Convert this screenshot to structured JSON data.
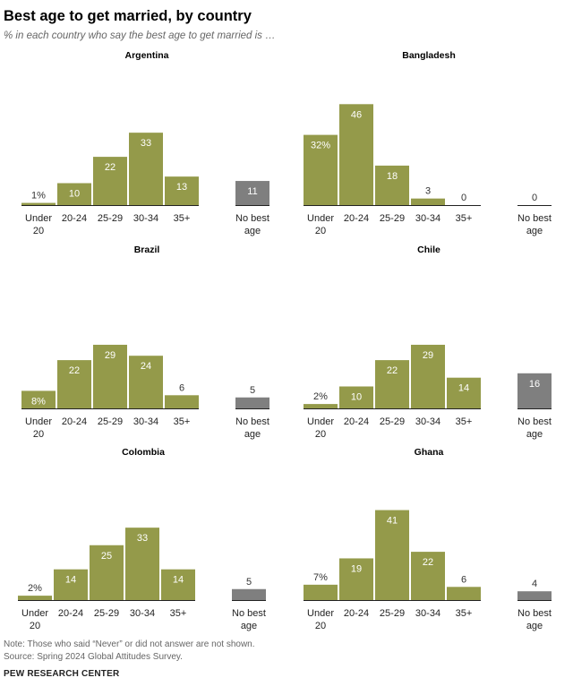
{
  "title": "Best age to get married, by country",
  "subtitle": "% in each country who say the best age to get married is …",
  "note": "Note: Those who said “Never” or did not answer are not shown.",
  "source": "Source: Spring 2024 Global Attitudes Survey.",
  "brand": "PEW RESEARCH CENTER",
  "colors": {
    "bar": "#949a4a",
    "no_best": "#7f7f7f",
    "axis": "#222222"
  },
  "chart_data": [
    {
      "type": "bar",
      "title": "Argentina",
      "categories": [
        "Under 20",
        "20-24",
        "25-29",
        "30-34",
        "35+",
        "No best age"
      ],
      "values": [
        1,
        10,
        22,
        33,
        13,
        11
      ],
      "labels": [
        "1%",
        "10",
        "22",
        "33",
        "13",
        "11"
      ]
    },
    {
      "type": "bar",
      "title": "Bangladesh",
      "categories": [
        "Under 20",
        "20-24",
        "25-29",
        "30-34",
        "35+",
        "No best age"
      ],
      "values": [
        32,
        46,
        18,
        3,
        0,
        0
      ],
      "labels": [
        "32%",
        "46",
        "18",
        "3",
        "0",
        "0"
      ]
    },
    {
      "type": "bar",
      "title": "Brazil",
      "categories": [
        "Under 20",
        "20-24",
        "25-29",
        "30-34",
        "35+",
        "No best age"
      ],
      "values": [
        8,
        22,
        29,
        24,
        6,
        5
      ],
      "labels": [
        "8%",
        "22",
        "29",
        "24",
        "6",
        "5"
      ]
    },
    {
      "type": "bar",
      "title": "Chile",
      "categories": [
        "Under 20",
        "20-24",
        "25-29",
        "30-34",
        "35+",
        "No best age"
      ],
      "values": [
        2,
        10,
        22,
        29,
        14,
        16
      ],
      "labels": [
        "2%",
        "10",
        "22",
        "29",
        "14",
        "16"
      ]
    },
    {
      "type": "bar",
      "title": "Colombia",
      "categories": [
        "Under 20",
        "20-24",
        "25-29",
        "30-34",
        "35+",
        "No best age"
      ],
      "values": [
        2,
        14,
        25,
        33,
        14,
        5
      ],
      "labels": [
        "2%",
        "14",
        "25",
        "33",
        "14",
        "5"
      ]
    },
    {
      "type": "bar",
      "title": "Ghana",
      "categories": [
        "Under 20",
        "20-24",
        "25-29",
        "30-34",
        "35+",
        "No best age"
      ],
      "values": [
        7,
        19,
        41,
        22,
        6,
        4
      ],
      "labels": [
        "7%",
        "19",
        "41",
        "22",
        "6",
        "4"
      ]
    }
  ]
}
